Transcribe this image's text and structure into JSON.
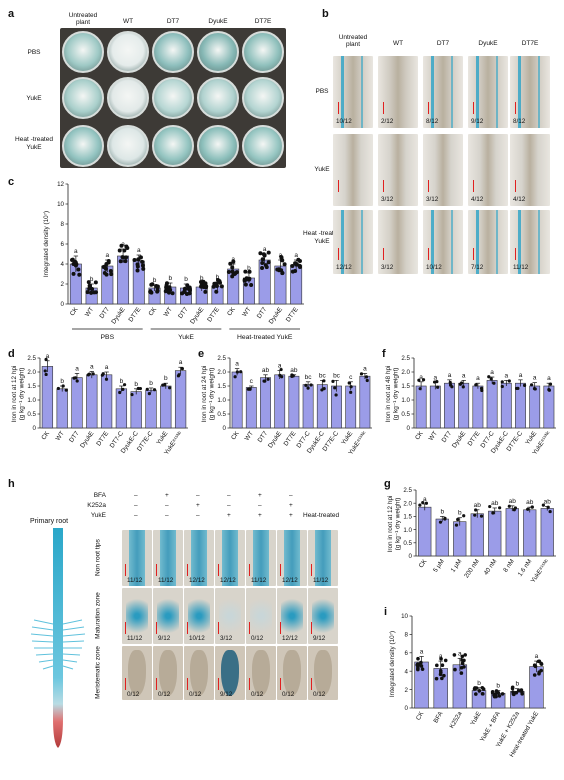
{
  "panel_a": {
    "label": "a",
    "columns": [
      "Untreated plant",
      "WT",
      "DT7",
      "DyukE",
      "DT7E"
    ],
    "rows": [
      "PBS",
      "YukE",
      "Heat -treated YukE"
    ]
  },
  "panel_b": {
    "label": "b",
    "columns": [
      "Untreated plant",
      "WT",
      "DT7",
      "DyukE",
      "DT7E"
    ],
    "rows": [
      "PBS",
      "YukE",
      "Heat -treated YukE"
    ],
    "fractions": [
      [
        "10/12",
        "2/12",
        "8/12",
        "9/12",
        "8/12"
      ],
      [
        "",
        "3/12",
        "3/12",
        "4/12",
        "4/12"
      ],
      [
        "12/12",
        "3/12",
        "10/12",
        "7/12",
        "11/12"
      ]
    ]
  },
  "panel_c": {
    "label": "c",
    "ylabel": "Integrated density (10⁷)",
    "yticks": [
      "0",
      "2",
      "4",
      "6",
      "8",
      "10",
      "12"
    ],
    "groups": [
      {
        "name": "PBS",
        "categories": [
          "CK",
          "WT",
          "DT7",
          "DyukE",
          "DT7E"
        ]
      },
      {
        "name": "YukE",
        "categories": [
          "CK",
          "WT",
          "DT7",
          "DyukE",
          "DT7E"
        ]
      },
      {
        "name": "Heat-treated YukE",
        "categories": [
          "CK",
          "WT",
          "DT7",
          "DyukE",
          "DT7E"
        ]
      }
    ]
  },
  "panel_d": {
    "label": "d",
    "ylabel1": "Iron in root at 12 hpi",
    "ylabel2": "(g kg⁻¹ dry weight)",
    "yticks": [
      "0",
      "0.5",
      "1.0",
      "1.5",
      "2.0",
      "2.5"
    ],
    "categories": [
      "CK",
      "WT",
      "DT7",
      "DyukE",
      "DT7E",
      "DT7-C",
      "DyukE-C",
      "DT7E-C",
      "YukE",
      "YukE⁸¹⁵ᴺᶜ"
    ]
  },
  "panel_e": {
    "label": "e",
    "ylabel1": "Iron in root at 24 hpi",
    "ylabel2": "(g kg⁻¹ dry weight)",
    "yticks": [
      "0",
      "0.5",
      "1.0",
      "1.5",
      "2.0",
      "2.5"
    ],
    "categories": [
      "CK",
      "WT",
      "DT7",
      "DyukE",
      "DT7E",
      "DT7-C",
      "DyukE-C",
      "DT7E-C",
      "YukE",
      "YukE⁸¹⁵ᴺᶜ"
    ]
  },
  "panel_f": {
    "label": "f",
    "ylabel1": "Iron in root at 48 hpi",
    "ylabel2": "(g kg⁻¹ dry weight)",
    "yticks": [
      "0",
      "0.5",
      "1.0",
      "1.5",
      "2.0",
      "2.5"
    ],
    "categories": [
      "CK",
      "WT",
      "DT7",
      "DyukE",
      "DT7E",
      "DT7-C",
      "DyukE-C",
      "DT7E-C",
      "YukE",
      "YukE⁸¹⁵ᴺᶜ"
    ]
  },
  "panel_g": {
    "label": "g",
    "ylabel1": "Iron in root at 12 hpi",
    "ylabel2": "(g kg⁻¹ dry weight)",
    "yticks": [
      "0",
      "0.5",
      "1.0",
      "1.5",
      "2.0",
      "2.5"
    ],
    "categories": [
      "CK",
      "5 μM",
      "1 μM",
      "200 nM",
      "40 nM",
      "8 nM",
      "1.6 nM",
      "YukE⁸¹⁵ᴺᶜ"
    ]
  },
  "panel_h": {
    "label": "h",
    "diagram_label": "Primary root",
    "treatments": [
      "BFA",
      "K252a",
      "YukE"
    ],
    "treatment_matrix": [
      [
        "–",
        "+",
        "–",
        "–",
        "+",
        "–",
        ""
      ],
      [
        "–",
        "–",
        "+",
        "–",
        "–",
        "+",
        ""
      ],
      [
        "–",
        "–",
        "–",
        "+",
        "+",
        "+",
        "Heat-treated"
      ]
    ],
    "rows": [
      "Non root tips",
      "Maturation zone",
      "Meristematic zone"
    ],
    "fractions": [
      [
        "11/12",
        "11/12",
        "12/12",
        "12/12",
        "11/12",
        "12/12",
        "11/12"
      ],
      [
        "11/12",
        "9/12",
        "10/12",
        "3/12",
        "0/12",
        "12/12",
        "9/12"
      ],
      [
        "0/12",
        "0/12",
        "0/12",
        "9/12",
        "0/12",
        "0/12",
        "0/12"
      ]
    ]
  },
  "panel_i": {
    "label": "i",
    "ylabel": "Integrated density (10⁷)",
    "yticks": [
      "0",
      "2",
      "4",
      "6",
      "8",
      "10"
    ],
    "categories": [
      "CK",
      "BFA",
      "K252a",
      "YukE",
      "YukE + BFA",
      "YukE + K252a",
      "Heat-treated YukE"
    ]
  },
  "chart_data": [
    {
      "type": "bar",
      "panel": "c",
      "categories": [
        "CK",
        "WT",
        "DT7",
        "DyukE",
        "DT7E",
        "CK",
        "WT",
        "DT7",
        "DyukE",
        "DT7E",
        "CK",
        "WT",
        "DT7",
        "DyukE",
        "DT7E"
      ],
      "values": [
        4.0,
        1.6,
        3.8,
        4.8,
        4.3,
        1.6,
        1.7,
        1.6,
        1.7,
        1.8,
        3.5,
        2.6,
        4.4,
        3.8,
        3.9
      ],
      "errors": [
        0.8,
        0.4,
        0.6,
        0.7,
        0.6,
        0.3,
        0.4,
        0.4,
        0.4,
        0.4,
        0.5,
        0.5,
        0.6,
        0.6,
        0.5
      ],
      "letters": [
        "a",
        "b",
        "a",
        "a",
        "a",
        "b",
        "b",
        "b",
        "b",
        "b",
        "a",
        "b",
        "a",
        "a",
        "a"
      ],
      "ylim": [
        0,
        12
      ],
      "ylabel": "Integrated density (10⁷)"
    },
    {
      "type": "bar",
      "panel": "d",
      "categories": [
        "CK",
        "WT",
        "DT7",
        "DyukE",
        "DT7E",
        "DT7-C",
        "DyukE-C",
        "DT7E-C",
        "YukE",
        "YukE⁸¹⁵ᴺᶜ"
      ],
      "values": [
        2.2,
        1.4,
        1.8,
        1.9,
        1.9,
        1.4,
        1.3,
        1.35,
        1.5,
        2.05
      ],
      "errors": [
        0.2,
        0.1,
        0.15,
        0.12,
        0.1,
        0.1,
        0.1,
        0.08,
        0.1,
        0.12
      ],
      "letters": [
        "a",
        "b",
        "a",
        "a",
        "a",
        "b",
        "b",
        "b",
        "b",
        "a"
      ],
      "ylim": [
        0,
        2.5
      ]
    },
    {
      "type": "bar",
      "panel": "e",
      "categories": [
        "CK",
        "WT",
        "DT7",
        "DyukE",
        "DT7E",
        "DT7-C",
        "DyukE-C",
        "DT7E-C",
        "YukE",
        "YukE⁸¹⁵ᴺᶜ"
      ],
      "values": [
        2.0,
        1.45,
        1.8,
        1.9,
        1.85,
        1.55,
        1.55,
        1.5,
        1.5,
        1.85
      ],
      "errors": [
        0.12,
        0.05,
        0.1,
        0.15,
        0.05,
        0.1,
        0.15,
        0.2,
        0.15,
        0.1
      ],
      "letters": [
        "a",
        "c",
        "ab",
        "a",
        "ab",
        "bc",
        "bc",
        "bc",
        "c",
        "a"
      ],
      "ylim": [
        0,
        2.5
      ]
    },
    {
      "type": "bar",
      "panel": "f",
      "categories": [
        "CK",
        "WT",
        "DT7",
        "DyukE",
        "DT7E",
        "DT7-C",
        "DyukE-C",
        "DT7E-C",
        "YukE",
        "YukE⁸¹⁵ᴺᶜ"
      ],
      "values": [
        1.5,
        1.5,
        1.6,
        1.6,
        1.5,
        1.7,
        1.6,
        1.6,
        1.5,
        1.5
      ],
      "errors": [
        0.15,
        0.12,
        0.12,
        0.1,
        0.1,
        0.12,
        0.1,
        0.12,
        0.12,
        0.1
      ],
      "letters": [
        "a",
        "a",
        "a",
        "a",
        "a",
        "a",
        "a",
        "a",
        "a",
        "a"
      ],
      "ylim": [
        0,
        2.5
      ]
    },
    {
      "type": "bar",
      "panel": "g",
      "categories": [
        "CK",
        "5 μM",
        "1 μM",
        "200 nM",
        "40 nM",
        "8 nM",
        "1.6 nM",
        "YukE⁸¹⁵ᴺᶜ"
      ],
      "values": [
        1.85,
        1.4,
        1.3,
        1.6,
        1.7,
        1.8,
        1.75,
        1.8
      ],
      "errors": [
        0.12,
        0.1,
        0.15,
        0.15,
        0.12,
        0.1,
        0.1,
        0.08
      ],
      "letters": [
        "a",
        "b",
        "b",
        "ab",
        "ab",
        "ab",
        "ab",
        "ab"
      ],
      "ylim": [
        0,
        2.5
      ]
    },
    {
      "type": "bar",
      "panel": "i",
      "categories": [
        "CK",
        "BFA",
        "K252a",
        "YukE",
        "YukE + BFA",
        "YukE + K252a",
        "Heat-treated YukE"
      ],
      "values": [
        5.0,
        4.3,
        4.7,
        1.9,
        1.6,
        1.8,
        4.5
      ],
      "errors": [
        0.6,
        0.8,
        0.7,
        0.3,
        0.3,
        0.3,
        0.6
      ],
      "letters": [
        "a",
        "a",
        "a",
        "b",
        "b",
        "b",
        "a"
      ],
      "ylim": [
        0,
        10
      ]
    }
  ]
}
